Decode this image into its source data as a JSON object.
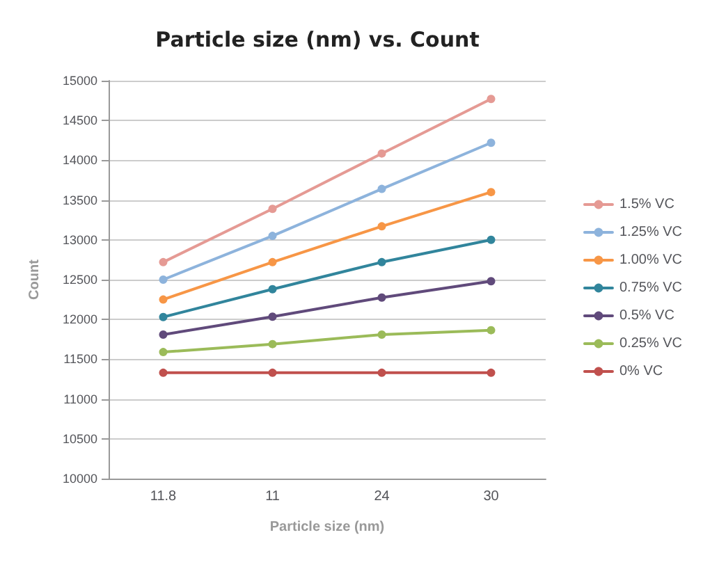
{
  "chart_data": {
    "type": "line",
    "title": "Particle size (nm) vs. Count",
    "xlabel": "Particle size (nm)",
    "ylabel": "Count",
    "categories": [
      "11.8",
      "11",
      "24",
      "30"
    ],
    "ylim": [
      10000,
      15000
    ],
    "yticks": [
      10000,
      10500,
      11000,
      11500,
      12000,
      12500,
      13000,
      13500,
      14000,
      14500,
      15000
    ],
    "grid": "y",
    "legend": "right",
    "marker": "circle",
    "line_style": "solid",
    "series": [
      {
        "name": "1.5% VC",
        "color": "#e59a94",
        "values": [
          12720,
          13390,
          14085,
          14770
        ]
      },
      {
        "name": "1.25% VC",
        "color": "#8db3dc",
        "values": [
          12500,
          13050,
          13640,
          14220
        ]
      },
      {
        "name": "1.00% VC",
        "color": "#f79646",
        "values": [
          12250,
          12720,
          13170,
          13600
        ]
      },
      {
        "name": "0.75% VC",
        "color": "#31859c",
        "values": [
          12030,
          12380,
          12720,
          13000
        ]
      },
      {
        "name": "0.5% VC",
        "color": "#604a7b",
        "values": [
          11810,
          12035,
          12275,
          12480
        ]
      },
      {
        "name": "0.25% VC",
        "color": "#9bbb59",
        "values": [
          11590,
          11690,
          11810,
          11865
        ]
      },
      {
        "name": "0% VC",
        "color": "#c0504d",
        "values": [
          11330,
          11330,
          11330,
          11330
        ]
      }
    ]
  }
}
